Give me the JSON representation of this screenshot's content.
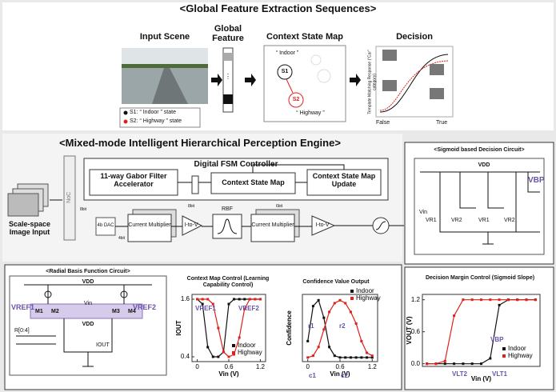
{
  "top": {
    "title": "<Global Feature Extraction Sequences>",
    "input_scene": "Input Scene",
    "global_feature": "Global Feature",
    "context_state_map": "Context State Map",
    "decision": "Decision",
    "legend": [
      "S1: “ Indoor ” state",
      "S2: “ Highway ” state"
    ],
    "map": {
      "indoor": "“ Indoor ”",
      "s1": "S1",
      "s2": "S2",
      "highway": "“ Highway ”"
    },
    "decision_axis": {
      "y": "Template Matching Response (“Car” category)",
      "false": "False",
      "true": "True"
    }
  },
  "engine": {
    "title": "<Mixed-mode Intelligent Hierarchical Perception Engine>",
    "fsm": "Digital FSM Controller",
    "gabor": "11-way Gabor Filter Accelerator",
    "csm": "Context State Map",
    "csm_update": "Context State Map Update",
    "noc": "NoC",
    "input": "Scale-space Image Input",
    "dac": "4b DAC",
    "bits": [
      "8bit",
      "4bit",
      "8bit",
      "6bit"
    ],
    "mult1": "Current Multiplier",
    "itov1": "I-to-V",
    "rbf": "RBF",
    "mult2": "Current Multiplier",
    "itov2": "I-to-V"
  },
  "sigmoid_circuit": {
    "title": "<Sigmoid based Decision Circuit>",
    "vdd": "VDD",
    "vbp": "VBP",
    "labels": [
      "Vin",
      "VR1",
      "VR2",
      "VR1",
      "VR2"
    ]
  },
  "rbf_circuit": {
    "title": "<Radial Basis Function Circuit>",
    "vdd": "VDD",
    "vdd2": "VDD",
    "vref1": "VREF1",
    "vref2": "VREF2",
    "vin": "Vin",
    "transistors": [
      "M1",
      "M2",
      "M3",
      "M4"
    ],
    "iout": "IOUT",
    "bits": "R[0:4]"
  },
  "chart_data": [
    {
      "type": "line",
      "title": "Context Map Control (Learning Capability Control)",
      "xlabel": "Vin (V)",
      "ylabel": "IOUT",
      "x": [
        0,
        0.1,
        0.2,
        0.3,
        0.4,
        0.5,
        0.6,
        0.7,
        0.8,
        0.9,
        1.0,
        1.1,
        1.2
      ],
      "series": [
        {
          "name": "Indoor",
          "color": "#111111",
          "values": [
            1.6,
            1.5,
            0.6,
            0.4,
            0.4,
            0.5,
            1.5,
            1.6,
            1.6,
            1.6,
            1.6,
            1.6,
            1.6
          ]
        },
        {
          "name": "Highway",
          "color": "#e0201b",
          "values": [
            1.6,
            1.6,
            1.6,
            1.5,
            1.0,
            0.5,
            0.4,
            0.45,
            0.8,
            1.4,
            1.6,
            1.6,
            1.6
          ]
        }
      ],
      "xlim": [
        -0.1,
        1.3
      ],
      "ylim": [
        0.3,
        1.7
      ],
      "xticks": [
        0,
        0.6,
        1.2
      ],
      "yticks": [
        0.4,
        1.6
      ],
      "annotations": [
        "VREF1",
        "VREF2"
      ]
    },
    {
      "type": "line",
      "title": "Confidence Value Output",
      "xlabel": "Vin (V)",
      "ylabel": "Confidence",
      "x": [
        0,
        0.1,
        0.2,
        0.3,
        0.4,
        0.5,
        0.6,
        0.7,
        0.8,
        0.9,
        1.0,
        1.1,
        1.2
      ],
      "series": [
        {
          "name": "Indoor",
          "color": "#111111",
          "values": [
            0.3,
            0.9,
            1.0,
            0.7,
            0.2,
            0.05,
            0.02,
            0.02,
            0.02,
            0.02,
            0.02,
            0.02,
            0.02
          ]
        },
        {
          "name": "Highway",
          "color": "#e0201b",
          "values": [
            0.02,
            0.05,
            0.2,
            0.5,
            0.8,
            0.95,
            1.0,
            0.95,
            0.8,
            0.6,
            0.3,
            0.1,
            0.05
          ]
        }
      ],
      "xlim": [
        -0.1,
        1.3
      ],
      "ylim": [
        -0.05,
        1.1
      ],
      "xticks": [
        0,
        0.6,
        1.2
      ],
      "annotations": [
        "r1",
        "r2",
        "c1",
        "c2"
      ]
    },
    {
      "type": "line",
      "title": "Decision Margin Control (Sigmoid Slope)",
      "xlabel": "Vin (V)",
      "ylabel": "VOUT (V)",
      "x": [
        0,
        0.1,
        0.2,
        0.3,
        0.4,
        0.5,
        0.6,
        0.7,
        0.8,
        0.9,
        1.0,
        1.1,
        1.2
      ],
      "series": [
        {
          "name": "Indoor",
          "color": "#111111",
          "values": [
            0,
            0,
            0,
            0,
            0,
            0,
            0,
            0.1,
            1.1,
            1.2,
            1.2,
            1.2,
            1.2
          ]
        },
        {
          "name": "Highway",
          "color": "#e0201b",
          "values": [
            0,
            0,
            0.05,
            0.9,
            1.2,
            1.2,
            1.2,
            1.2,
            1.2,
            1.2,
            1.2,
            1.2,
            1.2
          ]
        }
      ],
      "xlim": [
        -0.05,
        1.25
      ],
      "ylim": [
        -0.05,
        1.3
      ],
      "yticks": [
        {
          "value": 0,
          "label": "0.0"
        },
        0.6,
        1.2
      ],
      "annotations": [
        "VBP",
        "VLT2",
        "VLT1"
      ]
    }
  ]
}
